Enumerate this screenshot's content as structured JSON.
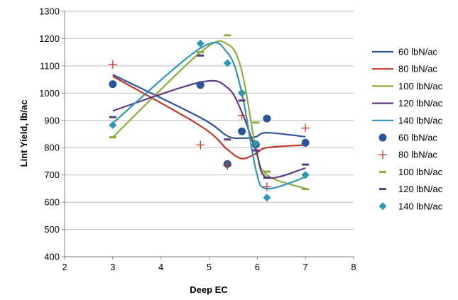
{
  "chart_data": {
    "type": "scatter",
    "xlabel": "Deep EC",
    "ylabel": "Lint Yield, lb/ac",
    "xlim": [
      2,
      8
    ],
    "ylim": [
      400,
      1300
    ],
    "xticks": [
      2,
      3,
      4,
      5,
      6,
      7,
      8
    ],
    "yticks": [
      400,
      500,
      600,
      700,
      800,
      900,
      1000,
      1100,
      1200,
      1300
    ],
    "grid": "horizontal",
    "legend_position": "right",
    "series": [
      {
        "name": "60 lbN/ac",
        "color": "#2E5597",
        "marker": "circle",
        "x": [
          3,
          4.82,
          5.38,
          5.68,
          5.97,
          6.2,
          7
        ],
        "y": [
          1033,
          1030,
          740,
          860,
          812,
          907,
          818
        ]
      },
      {
        "name": "80 lbN/ac",
        "color": "#C0392B",
        "marker": "plus",
        "x": [
          3,
          4.82,
          5.38,
          5.68,
          5.97,
          6.2,
          7
        ],
        "y": [
          1105,
          810,
          735,
          918,
          812,
          657,
          872
        ]
      },
      {
        "name": "100 lbN/ac",
        "color": "#8BAE3C",
        "marker": "dash",
        "x": [
          3,
          4.82,
          5.38,
          5.68,
          5.97,
          6.2,
          7
        ],
        "y": [
          838,
          1150,
          1212,
          1005,
          892,
          712,
          648
        ]
      },
      {
        "name": "120 lbN/ac",
        "color": "#5E3A86",
        "marker": "dash",
        "x": [
          3,
          4.82,
          5.38,
          5.68,
          5.97,
          6.2,
          7
        ],
        "y": [
          912,
          1138,
          830,
          973,
          790,
          690,
          738
        ]
      },
      {
        "name": "140 lbN/ac",
        "color": "#2E97B5",
        "marker": "diamond",
        "x": [
          3,
          4.82,
          5.38,
          5.68,
          5.97,
          6.2,
          7
        ],
        "y": [
          883,
          1182,
          1110,
          1000,
          815,
          617,
          700
        ]
      }
    ],
    "trendlines": [
      {
        "name": "60 lbN/ac",
        "color": "#2E5597",
        "x": [
          3,
          4.82,
          5.38,
          5.68,
          5.97,
          6.2,
          7
        ],
        "y": [
          1068,
          910,
          843,
          835,
          840,
          855,
          840
        ]
      },
      {
        "name": "80 lbN/ac",
        "color": "#C0392B",
        "x": [
          3,
          4.82,
          5.38,
          5.68,
          5.97,
          6.2,
          7
        ],
        "y": [
          1062,
          880,
          793,
          760,
          778,
          800,
          810
        ]
      },
      {
        "name": "100 lbN/ac",
        "color": "#8BAE3C",
        "x": [
          3,
          4.82,
          5.38,
          5.68,
          5.97,
          6.2,
          7
        ],
        "y": [
          838,
          1150,
          1180,
          1080,
          800,
          700,
          650
        ]
      },
      {
        "name": "120 lbN/ac",
        "color": "#5E3A86",
        "x": [
          3,
          4.82,
          5.38,
          5.68,
          5.97,
          6.2,
          7
        ],
        "y": [
          935,
          1040,
          1020,
          930,
          790,
          690,
          725
        ]
      },
      {
        "name": "140 lbN/ac",
        "color": "#2E97B5",
        "x": [
          3,
          4.82,
          5.38,
          5.68,
          5.97,
          6.2,
          7
        ],
        "y": [
          890,
          1165,
          1148,
          1000,
          720,
          650,
          692
        ]
      }
    ]
  }
}
